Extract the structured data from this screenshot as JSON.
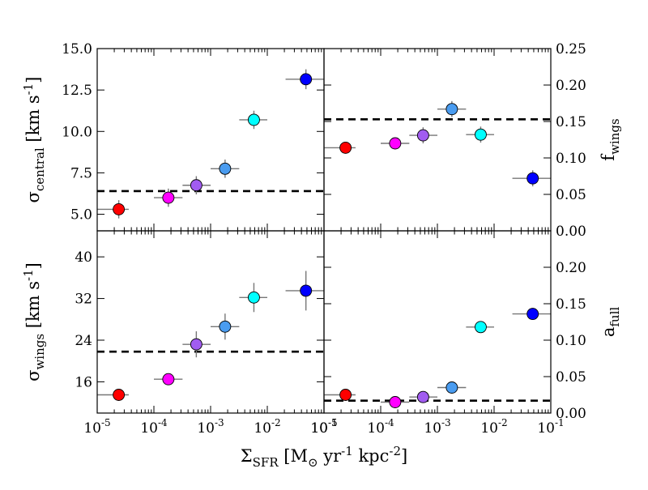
{
  "figure": {
    "xlabel": "Σ_SFR [M_⊙ yr^-1 kpc^-2]"
  },
  "chart_data": [
    {
      "type": "scatter",
      "panel": "top-left",
      "xscale": "log",
      "xlim": [
        1e-05,
        0.1
      ],
      "ylim": [
        4.0,
        15.0
      ],
      "yticks": [
        5.0,
        7.5,
        10.0,
        12.5,
        15.0
      ],
      "ytick_labels": [
        "5.0",
        "7.5",
        "10.0",
        "12.5",
        "15.0"
      ],
      "ytick_side": "left",
      "ylabel": "σ_central [km s^-1]",
      "hline": 6.4,
      "points": [
        {
          "x": 2.4e-05,
          "y": 5.3,
          "xlo": 1e-05,
          "xhi": 3.6e-05,
          "yerr": 0.55,
          "color": "#ff0000"
        },
        {
          "x": 0.00018,
          "y": 6.0,
          "xlo": 0.0001,
          "xhi": 0.00032,
          "yerr": 0.55,
          "color": "#ff00ff"
        },
        {
          "x": 0.00056,
          "y": 6.75,
          "xlo": 0.00032,
          "xhi": 0.001,
          "yerr": 0.55,
          "color": "#a15cf0"
        },
        {
          "x": 0.0018,
          "y": 7.75,
          "xlo": 0.001,
          "xhi": 0.0032,
          "yerr": 0.55,
          "color": "#4a9cf0"
        },
        {
          "x": 0.0058,
          "y": 10.7,
          "xlo": 0.0032,
          "xhi": 0.01,
          "yerr": 0.55,
          "color": "#00ffff"
        },
        {
          "x": 0.048,
          "y": 13.15,
          "xlo": 0.021,
          "xhi": 0.1,
          "yerr": 0.6,
          "color": "#0000ff"
        }
      ]
    },
    {
      "type": "scatter",
      "panel": "top-right",
      "xscale": "log",
      "xlim": [
        1e-05,
        0.1
      ],
      "ylim": [
        0.0,
        0.25
      ],
      "yticks": [
        0.0,
        0.05,
        0.1,
        0.15,
        0.2,
        0.25
      ],
      "ytick_labels": [
        "0.00",
        "0.05",
        "0.10",
        "0.15",
        "0.20",
        "0.25"
      ],
      "ytick_side": "right",
      "ylabel": "f_wings",
      "hline": 0.153,
      "points": [
        {
          "x": 2.4e-05,
          "y": 0.114,
          "xlo": 1e-05,
          "xhi": 3.6e-05,
          "yerr": 0.006,
          "color": "#ff0000"
        },
        {
          "x": 0.00018,
          "y": 0.12,
          "xlo": 0.0001,
          "xhi": 0.00032,
          "yerr": 0.006,
          "color": "#ff00ff"
        },
        {
          "x": 0.00056,
          "y": 0.131,
          "xlo": 0.00032,
          "xhi": 0.001,
          "yerr": 0.011,
          "color": "#a15cf0"
        },
        {
          "x": 0.0018,
          "y": 0.167,
          "xlo": 0.001,
          "xhi": 0.0032,
          "yerr": 0.011,
          "color": "#4a9cf0"
        },
        {
          "x": 0.0058,
          "y": 0.132,
          "xlo": 0.0032,
          "xhi": 0.01,
          "yerr": 0.011,
          "color": "#00ffff"
        },
        {
          "x": 0.048,
          "y": 0.072,
          "xlo": 0.021,
          "xhi": 0.1,
          "yerr": 0.011,
          "color": "#0000ff"
        }
      ]
    },
    {
      "type": "scatter",
      "panel": "bottom-left",
      "xscale": "log",
      "xlim": [
        1e-05,
        0.1
      ],
      "ylim": [
        10.0,
        45.0
      ],
      "yticks": [
        16,
        24,
        32,
        40
      ],
      "ytick_labels": [
        "16",
        "24",
        "32",
        "40"
      ],
      "ytick_side": "left",
      "ylabel": "σ_wings [km s^-1]",
      "hline": 21.8,
      "xticks": [
        1e-05,
        0.0001,
        0.001,
        0.01,
        0.1
      ],
      "xtick_labels": [
        "10^-5",
        "10^-4",
        "10^-3",
        "10^-2",
        "10^-1"
      ],
      "points": [
        {
          "x": 2.4e-05,
          "y": 13.5,
          "xlo": 1e-05,
          "xhi": 3.6e-05,
          "yerr": 0.9,
          "color": "#ff0000"
        },
        {
          "x": 0.00018,
          "y": 16.5,
          "xlo": 0.0001,
          "xhi": 0.00032,
          "yerr": 0.9,
          "color": "#ff00ff"
        },
        {
          "x": 0.00056,
          "y": 23.2,
          "xlo": 0.00032,
          "xhi": 0.001,
          "yerr": 2.5,
          "color": "#a15cf0"
        },
        {
          "x": 0.0018,
          "y": 26.6,
          "xlo": 0.001,
          "xhi": 0.0032,
          "yerr": 2.5,
          "color": "#4a9cf0"
        },
        {
          "x": 0.0058,
          "y": 32.2,
          "xlo": 0.0032,
          "xhi": 0.01,
          "yerr": 2.8,
          "color": "#00ffff"
        },
        {
          "x": 0.048,
          "y": 33.5,
          "xlo": 0.021,
          "xhi": 0.1,
          "yerr": 3.8,
          "color": "#0000ff"
        }
      ]
    },
    {
      "type": "scatter",
      "panel": "bottom-right",
      "xscale": "log",
      "xlim": [
        1e-05,
        0.1
      ],
      "ylim": [
        0.0,
        0.25
      ],
      "yticks": [
        0.0,
        0.05,
        0.1,
        0.15,
        0.2
      ],
      "ytick_labels": [
        "0.00",
        "0.05",
        "0.10",
        "0.15",
        "0.20"
      ],
      "ytick_side": "right",
      "ylabel": "a_full",
      "hline": 0.017,
      "xticks": [
        1e-05,
        0.0001,
        0.001,
        0.01,
        0.1
      ],
      "xtick_labels": [
        "10^-5",
        "10^-4",
        "10^-3",
        "10^-2",
        "10^-1"
      ],
      "points": [
        {
          "x": 2.4e-05,
          "y": 0.025,
          "xlo": 1e-05,
          "xhi": 3.6e-05,
          "yerr": 0.003,
          "color": "#ff0000"
        },
        {
          "x": 0.00018,
          "y": 0.015,
          "xlo": 0.0001,
          "xhi": 0.00032,
          "yerr": 0.003,
          "color": "#ff00ff"
        },
        {
          "x": 0.00056,
          "y": 0.022,
          "xlo": 0.00032,
          "xhi": 0.001,
          "yerr": 0.003,
          "color": "#a15cf0"
        },
        {
          "x": 0.0018,
          "y": 0.035,
          "xlo": 0.001,
          "xhi": 0.0032,
          "yerr": 0.004,
          "color": "#4a9cf0"
        },
        {
          "x": 0.0058,
          "y": 0.118,
          "xlo": 0.0032,
          "xhi": 0.01,
          "yerr": 0.003,
          "color": "#00ffff"
        },
        {
          "x": 0.048,
          "y": 0.136,
          "xlo": 0.021,
          "xhi": 0.1,
          "yerr": 0.003,
          "color": "#0000ff"
        }
      ]
    }
  ]
}
